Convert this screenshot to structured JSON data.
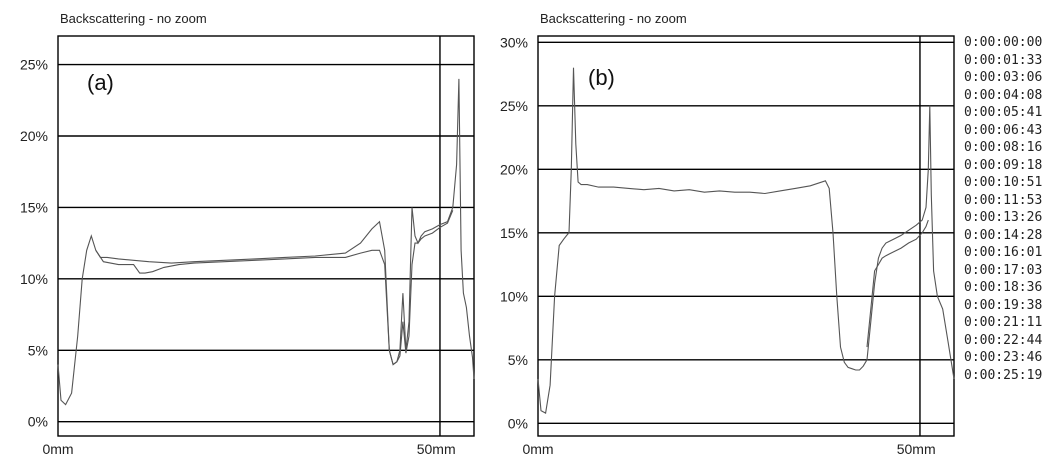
{
  "chart_data": [
    {
      "type": "line",
      "title": "Backscattering - no zoom",
      "panel_label": "(a)",
      "xlabel": "",
      "ylabel": "",
      "xlim": [
        0,
        55
      ],
      "ylim": [
        -1,
        27
      ],
      "yticks": [
        0,
        5,
        10,
        15,
        20,
        25
      ],
      "ytick_labels": [
        "0%",
        "5%",
        "10%",
        "15%",
        "20%",
        "25%"
      ],
      "xticks": [
        0,
        50
      ],
      "xtick_labels": [
        "0mm",
        "50mm"
      ],
      "marker_line_x": 50.5,
      "grid": true,
      "series": [
        {
          "x": [
            0,
            0.4,
            1,
            1.8,
            2.6,
            3.2,
            3.8,
            4.4,
            5,
            5.6,
            6.5,
            8,
            10,
            12,
            15,
            18,
            22,
            26,
            30,
            34,
            38,
            40,
            41.5,
            42.5,
            43.2,
            43.8,
            44.3,
            44.8,
            45.2,
            45.6,
            46,
            46.4,
            46.8,
            47.2,
            47.6,
            48,
            48.5,
            49.5,
            50.5,
            51.5,
            52.2,
            52.7,
            53,
            53.3,
            53.6,
            54,
            54.4,
            54.8,
            55
          ],
          "y": [
            4,
            1.5,
            1.2,
            2,
            6,
            10,
            12,
            13,
            12,
            11.5,
            11.5,
            11.4,
            11.3,
            11.2,
            11.1,
            11.2,
            11.3,
            11.4,
            11.5,
            11.6,
            11.8,
            12.5,
            13.5,
            14,
            12,
            5,
            4,
            4.2,
            5,
            9,
            5,
            7,
            15,
            13,
            12.5,
            13,
            13.3,
            13.5,
            13.8,
            14,
            15,
            18,
            24,
            12,
            9,
            8,
            6,
            4.5,
            3
          ]
        },
        {
          "x": [
            5,
            6,
            8,
            10,
            10.8,
            11.5,
            12.5,
            14,
            16,
            18,
            22,
            26,
            30,
            34,
            38,
            40,
            41.5,
            42.5,
            43.2,
            43.8,
            44.3,
            44.8,
            45.2,
            45.6,
            46,
            46.4,
            46.8,
            47.2,
            47.6,
            48,
            48.5,
            49.5,
            50.5,
            51.5,
            52.2
          ],
          "y": [
            12,
            11.2,
            11,
            11,
            10.4,
            10.4,
            10.5,
            10.8,
            11,
            11.1,
            11.2,
            11.3,
            11.4,
            11.5,
            11.5,
            11.8,
            12,
            12,
            11,
            5,
            4,
            4.2,
            4.6,
            7,
            4.8,
            6,
            11,
            12.5,
            12.5,
            12.8,
            13,
            13.2,
            13.6,
            13.9,
            14.8
          ]
        }
      ]
    },
    {
      "type": "line",
      "title": "Backscattering - no zoom",
      "panel_label": "(b)",
      "xlabel": "",
      "ylabel": "",
      "xlim": [
        0,
        55
      ],
      "ylim": [
        -1,
        30.5
      ],
      "yticks": [
        0,
        5,
        10,
        15,
        20,
        25,
        30
      ],
      "ytick_labels": [
        "0%",
        "5%",
        "10%",
        "15%",
        "20%",
        "25%",
        "30%"
      ],
      "xticks": [
        0,
        50
      ],
      "xtick_labels": [
        "0mm",
        "50mm"
      ],
      "marker_line_x": 50.5,
      "grid": true,
      "series": [
        {
          "x": [
            0,
            0.4,
            1,
            1.6,
            2.2,
            2.8,
            3.4,
            3.8,
            4.1,
            4.4,
            4.7,
            5,
            5.3,
            5.7,
            6.5,
            8,
            10,
            12,
            14,
            16,
            18,
            20,
            22,
            24,
            26,
            28,
            30,
            32,
            34,
            36,
            38,
            38.5,
            39,
            39.5,
            40,
            40.5,
            41,
            41.5,
            42,
            42.5,
            43,
            43.5,
            44,
            44.5,
            45,
            45.5,
            46,
            47,
            48,
            49,
            50,
            50.8,
            51.3,
            51.6,
            51.8,
            52,
            52.3,
            52.8,
            53.5,
            54.2,
            55
          ],
          "y": [
            3.5,
            1,
            0.8,
            3,
            10,
            14,
            14.5,
            14.8,
            15,
            20,
            28,
            22,
            19,
            18.8,
            18.8,
            18.6,
            18.6,
            18.5,
            18.4,
            18.5,
            18.3,
            18.4,
            18.2,
            18.3,
            18.2,
            18.2,
            18.1,
            18.3,
            18.5,
            18.7,
            19.1,
            18.5,
            15,
            10,
            6,
            4.8,
            4.4,
            4.3,
            4.2,
            4.2,
            4.5,
            5,
            8,
            11,
            13,
            13.8,
            14.2,
            14.5,
            14.8,
            15.2,
            15.6,
            16,
            17,
            20,
            25,
            18,
            12,
            10,
            9,
            6.5,
            3.5
          ]
        },
        {
          "x": [
            43.5,
            44,
            44.5,
            45,
            45.5,
            46,
            47,
            48,
            49,
            50,
            50.8,
            51.3,
            51.6
          ],
          "y": [
            6,
            9,
            12,
            12.5,
            13,
            13.2,
            13.5,
            13.8,
            14.2,
            14.5,
            15,
            15.5,
            16
          ]
        }
      ]
    }
  ],
  "legend": {
    "entries": [
      "0:00:00:00",
      "0:00:01:33",
      "0:00:03:06",
      "0:00:04:08",
      "0:00:05:41",
      "0:00:06:43",
      "0:00:08:16",
      "0:00:09:18",
      "0:00:10:51",
      "0:00:11:53",
      "0:00:13:26",
      "0:00:14:28",
      "0:00:16:01",
      "0:00:17:03",
      "0:00:18:36",
      "0:00:19:38",
      "0:00:21:11",
      "0:00:22:44",
      "0:00:23:46",
      "0:00:25:19"
    ]
  }
}
